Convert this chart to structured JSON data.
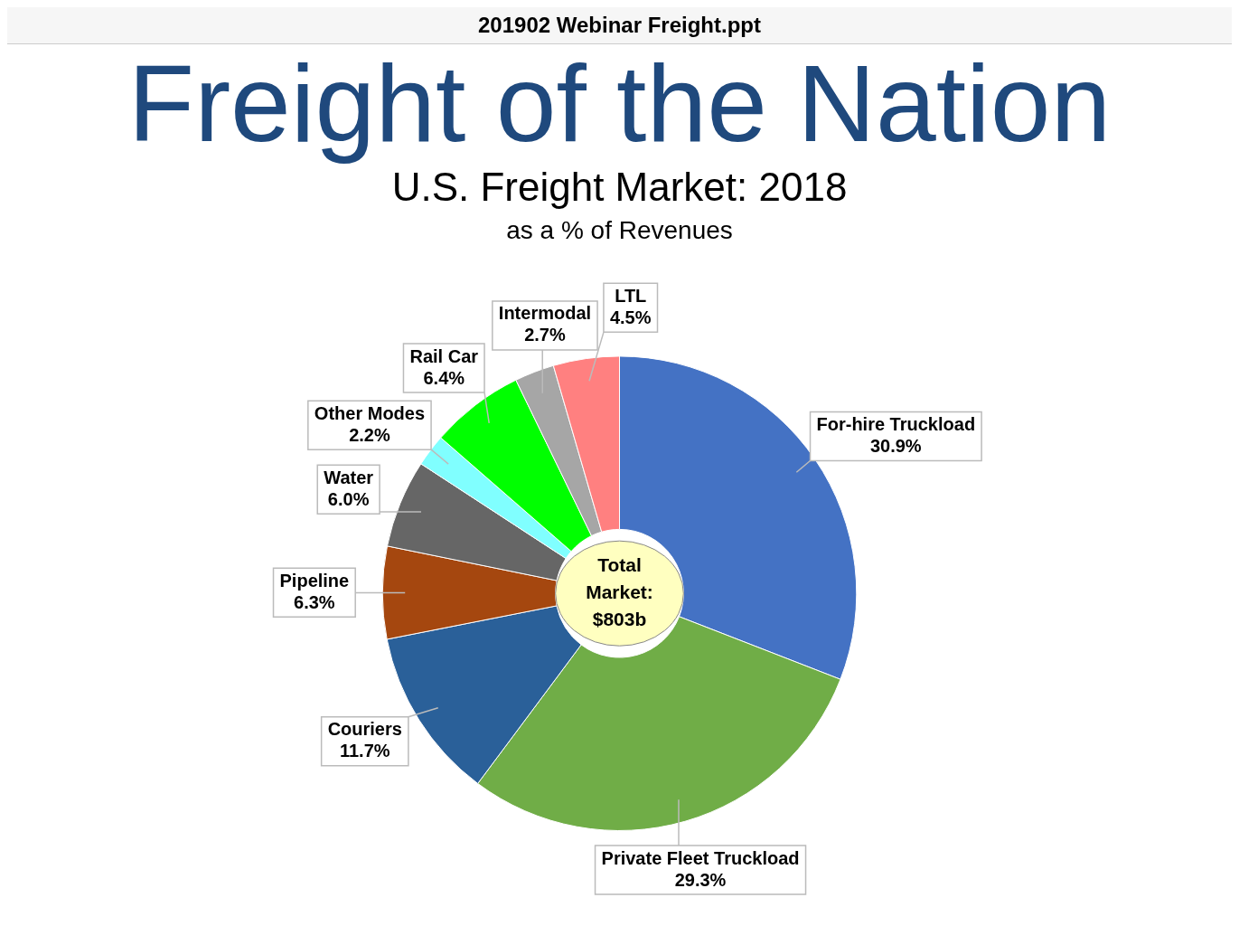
{
  "chart_data": {
    "type": "donut",
    "title": "U.S. Freight Market: 2018",
    "subtitle": "as a % of Revenues",
    "annotations": [
      "201902 Webinar Freight.ppt",
      "Freight of the Nation",
      "Total Market: $803b"
    ],
    "categories": [
      "For-hire Truckload",
      "Private Fleet Truckload",
      "Couriers",
      "Pipeline",
      "Water",
      "Other Modes",
      "Rail Car",
      "Intermodal",
      "LTL"
    ],
    "values": [
      30.9,
      29.3,
      11.7,
      6.3,
      6.0,
      2.2,
      6.4,
      2.7,
      4.5
    ],
    "value_labels": [
      "30.9%",
      "29.3%",
      "11.7%",
      "6.3%",
      "6.0%",
      "2.2%",
      "6.4%",
      "2.7%",
      "4.5%"
    ],
    "colors": [
      "#4472c4",
      "#70ad47",
      "#2a6099",
      "#a5470f",
      "#666666",
      "#80ffff",
      "#00ff00",
      "#a6a6a6",
      "#ff8080"
    ],
    "legend": false
  }
}
